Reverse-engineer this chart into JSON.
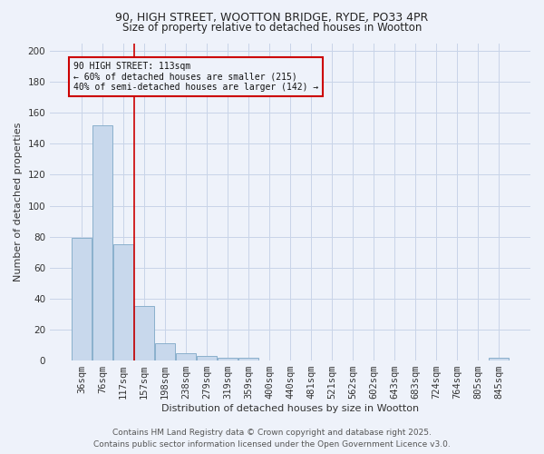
{
  "title_line1": "90, HIGH STREET, WOOTTON BRIDGE, RYDE, PO33 4PR",
  "title_line2": "Size of property relative to detached houses in Wootton",
  "xlabel": "Distribution of detached houses by size in Wootton",
  "ylabel": "Number of detached properties",
  "footer_line1": "Contains HM Land Registry data © Crown copyright and database right 2025.",
  "footer_line2": "Contains public sector information licensed under the Open Government Licence v3.0.",
  "annotation_title": "90 HIGH STREET: 113sqm",
  "annotation_line2": "← 60% of detached houses are smaller (215)",
  "annotation_line3": "40% of semi-detached houses are larger (142) →",
  "subject_line_color": "#cc0000",
  "bar_color": "#c8d8ec",
  "bar_edge_color": "#8ab0cc",
  "grid_color": "#c8d4e8",
  "bg_color": "#eef2fa",
  "categories": [
    "36sqm",
    "76sqm",
    "117sqm",
    "157sqm",
    "198sqm",
    "238sqm",
    "279sqm",
    "319sqm",
    "359sqm",
    "400sqm",
    "440sqm",
    "481sqm",
    "521sqm",
    "562sqm",
    "602sqm",
    "643sqm",
    "683sqm",
    "724sqm",
    "764sqm",
    "805sqm",
    "845sqm"
  ],
  "values": [
    79,
    152,
    75,
    35,
    11,
    5,
    3,
    2,
    2,
    0,
    0,
    0,
    0,
    0,
    0,
    0,
    0,
    0,
    0,
    0,
    2
  ],
  "ylim": [
    0,
    205
  ],
  "yticks": [
    0,
    20,
    40,
    60,
    80,
    100,
    120,
    140,
    160,
    180,
    200
  ],
  "subject_bar_idx": 2,
  "title_fontsize": 9,
  "xlabel_fontsize": 8,
  "ylabel_fontsize": 8,
  "tick_fontsize": 7.5,
  "footer_fontsize": 6.5
}
